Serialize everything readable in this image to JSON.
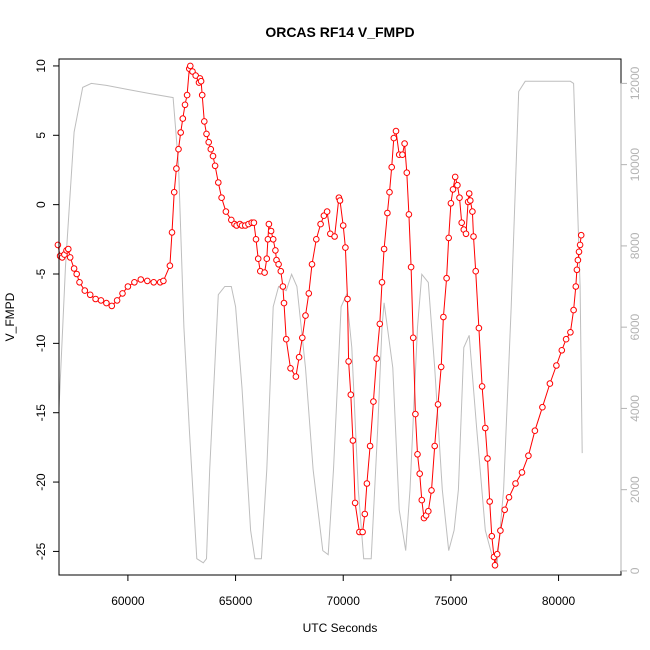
{
  "chart_data": {
    "type": "line",
    "title": "ORCAS RF14 V_FMPD",
    "xlabel": "UTC Seconds",
    "ylabel": "V_FMPD",
    "xlim": [
      56800,
      82900
    ],
    "ylim": [
      -26.7,
      10.5
    ],
    "y2lim": [
      -100,
      12600
    ],
    "grid": false,
    "legend": "none",
    "x_ticks": [
      60000,
      65000,
      70000,
      75000,
      80000
    ],
    "y_ticks": [
      10,
      5,
      0,
      -5,
      -10,
      -15,
      -20,
      -25
    ],
    "y2_ticks": [
      0,
      2000,
      4000,
      6000,
      8000,
      10000,
      12000
    ],
    "colors": {
      "series_main": "#ff0000",
      "series_secondary": "#bebebe",
      "axes": "#000000",
      "right_axis": "#b3b3b3"
    },
    "series": [
      {
        "axis": "left",
        "style": "red circles connected by line segments",
        "points": [
          [
            56750,
            -2.9
          ],
          [
            56850,
            -3.7
          ],
          [
            56950,
            -3.8
          ],
          [
            57050,
            -3.6
          ],
          [
            57150,
            -3.3
          ],
          [
            57230,
            -3.2
          ],
          [
            57320,
            -3.8
          ],
          [
            57500,
            -4.6
          ],
          [
            57620,
            -5.0
          ],
          [
            57750,
            -5.6
          ],
          [
            58000,
            -6.2
          ],
          [
            58250,
            -6.5
          ],
          [
            58500,
            -6.8
          ],
          [
            58750,
            -6.9
          ],
          [
            59000,
            -7.1
          ],
          [
            59250,
            -7.3
          ],
          [
            59500,
            -6.9
          ],
          [
            59750,
            -6.4
          ],
          [
            60000,
            -5.9
          ],
          [
            60300,
            -5.6
          ],
          [
            60600,
            -5.4
          ],
          [
            60900,
            -5.5
          ],
          [
            61200,
            -5.6
          ],
          [
            61500,
            -5.6
          ],
          [
            61650,
            -5.5
          ],
          [
            61950,
            -4.4
          ],
          [
            62050,
            -2.0
          ],
          [
            62150,
            0.9
          ],
          [
            62250,
            2.6
          ],
          [
            62350,
            4.0
          ],
          [
            62450,
            5.2
          ],
          [
            62550,
            6.2
          ],
          [
            62650,
            7.2
          ],
          [
            62750,
            7.9
          ],
          [
            62850,
            9.8
          ],
          [
            62900,
            10.0
          ],
          [
            63000,
            9.6
          ],
          [
            63150,
            9.3
          ],
          [
            63300,
            8.8
          ],
          [
            63350,
            9.1
          ],
          [
            63400,
            8.9
          ],
          [
            63450,
            7.9
          ],
          [
            63550,
            6.0
          ],
          [
            63650,
            5.1
          ],
          [
            63750,
            4.5
          ],
          [
            63850,
            4.0
          ],
          [
            63950,
            3.5
          ],
          [
            64050,
            2.8
          ],
          [
            64200,
            1.6
          ],
          [
            64350,
            0.5
          ],
          [
            64550,
            -0.5
          ],
          [
            64800,
            -1.1
          ],
          [
            64950,
            -1.4
          ],
          [
            65050,
            -1.5
          ],
          [
            65200,
            -1.4
          ],
          [
            65300,
            -1.5
          ],
          [
            65450,
            -1.5
          ],
          [
            65600,
            -1.4
          ],
          [
            65750,
            -1.3
          ],
          [
            65850,
            -1.3
          ],
          [
            65950,
            -2.5
          ],
          [
            66050,
            -3.9
          ],
          [
            66150,
            -4.8
          ],
          [
            66350,
            -4.9
          ],
          [
            66450,
            -3.9
          ],
          [
            66500,
            -2.5
          ],
          [
            66550,
            -1.4
          ],
          [
            66650,
            -1.9
          ],
          [
            66750,
            -2.5
          ],
          [
            66850,
            -3.3
          ],
          [
            66900,
            -4.0
          ],
          [
            67000,
            -4.3
          ],
          [
            67100,
            -4.8
          ],
          [
            67200,
            -5.9
          ],
          [
            67250,
            -7.1
          ],
          [
            67350,
            -9.7
          ],
          [
            67550,
            -11.8
          ],
          [
            67800,
            -12.4
          ],
          [
            67950,
            -11.0
          ],
          [
            68100,
            -9.6
          ],
          [
            68250,
            -8.0
          ],
          [
            68400,
            -6.4
          ],
          [
            68550,
            -4.3
          ],
          [
            68750,
            -2.5
          ],
          [
            68950,
            -1.4
          ],
          [
            69100,
            -0.8
          ],
          [
            69250,
            -0.5
          ],
          [
            69400,
            -2.1
          ],
          [
            69600,
            -2.3
          ],
          [
            69800,
            0.5
          ],
          [
            69850,
            0.3
          ],
          [
            70000,
            -1.5
          ],
          [
            70100,
            -3.1
          ],
          [
            70200,
            -6.8
          ],
          [
            70250,
            -11.3
          ],
          [
            70350,
            -13.7
          ],
          [
            70450,
            -17.0
          ],
          [
            70550,
            -21.5
          ],
          [
            70750,
            -23.6
          ],
          [
            70900,
            -23.6
          ],
          [
            71000,
            -22.3
          ],
          [
            71100,
            -20.1
          ],
          [
            71250,
            -17.4
          ],
          [
            71400,
            -14.2
          ],
          [
            71550,
            -11.1
          ],
          [
            71700,
            -8.6
          ],
          [
            71800,
            -5.6
          ],
          [
            71900,
            -3.2
          ],
          [
            72050,
            -0.6
          ],
          [
            72150,
            0.9
          ],
          [
            72250,
            2.7
          ],
          [
            72350,
            4.8
          ],
          [
            72450,
            5.3
          ],
          [
            72600,
            3.6
          ],
          [
            72750,
            3.6
          ],
          [
            72850,
            4.4
          ],
          [
            72950,
            2.3
          ],
          [
            73050,
            -0.7
          ],
          [
            73150,
            -4.5
          ],
          [
            73250,
            -9.6
          ],
          [
            73350,
            -15.1
          ],
          [
            73450,
            -18.0
          ],
          [
            73550,
            -19.4
          ],
          [
            73650,
            -21.3
          ],
          [
            73750,
            -22.6
          ],
          [
            73850,
            -22.4
          ],
          [
            73950,
            -22.1
          ],
          [
            74100,
            -20.6
          ],
          [
            74250,
            -17.4
          ],
          [
            74400,
            -14.4
          ],
          [
            74550,
            -11.7
          ],
          [
            74650,
            -8.1
          ],
          [
            74800,
            -5.3
          ],
          [
            74900,
            -2.4
          ],
          [
            75000,
            0.1
          ],
          [
            75100,
            1.1
          ],
          [
            75200,
            2.0
          ],
          [
            75300,
            1.4
          ],
          [
            75400,
            0.5
          ],
          [
            75500,
            -1.3
          ],
          [
            75600,
            -1.8
          ],
          [
            75700,
            -2.1
          ],
          [
            75800,
            0.2
          ],
          [
            75850,
            0.8
          ],
          [
            75900,
            0.3
          ],
          [
            76000,
            -0.5
          ],
          [
            76050,
            -2.3
          ],
          [
            76150,
            -4.8
          ],
          [
            76300,
            -8.9
          ],
          [
            76450,
            -13.1
          ],
          [
            76600,
            -16.1
          ],
          [
            76700,
            -18.3
          ],
          [
            76800,
            -21.4
          ],
          [
            76900,
            -23.9
          ],
          [
            77000,
            -25.4
          ],
          [
            77050,
            -26.0
          ],
          [
            77150,
            -25.2
          ],
          [
            77300,
            -23.5
          ],
          [
            77500,
            -22.0
          ],
          [
            77700,
            -21.1
          ],
          [
            78000,
            -20.1
          ],
          [
            78300,
            -19.3
          ],
          [
            78600,
            -18.1
          ],
          [
            78900,
            -16.3
          ],
          [
            79250,
            -14.6
          ],
          [
            79600,
            -12.9
          ],
          [
            79900,
            -11.6
          ],
          [
            80150,
            -10.5
          ],
          [
            80350,
            -9.7
          ],
          [
            80550,
            -9.2
          ],
          [
            80700,
            -7.6
          ],
          [
            80800,
            -5.9
          ],
          [
            80850,
            -4.7
          ],
          [
            80900,
            -4.0
          ],
          [
            80950,
            -3.4
          ],
          [
            81000,
            -2.9
          ],
          [
            81050,
            -2.2
          ]
        ]
      },
      {
        "axis": "right",
        "style": "grey line",
        "points": [
          [
            56800,
            4000
          ],
          [
            57100,
            7500
          ],
          [
            57500,
            10800
          ],
          [
            57900,
            11900
          ],
          [
            58300,
            12000
          ],
          [
            59000,
            11950
          ],
          [
            60000,
            11850
          ],
          [
            61000,
            11750
          ],
          [
            62100,
            11650
          ],
          [
            62350,
            10000
          ],
          [
            62600,
            6000
          ],
          [
            62850,
            3500
          ],
          [
            63200,
            300
          ],
          [
            63500,
            200
          ],
          [
            63650,
            300
          ],
          [
            63800,
            2500
          ],
          [
            64200,
            6800
          ],
          [
            64500,
            7000
          ],
          [
            64800,
            7000
          ],
          [
            65000,
            6500
          ],
          [
            65300,
            4500
          ],
          [
            65700,
            1000
          ],
          [
            65900,
            300
          ],
          [
            66200,
            300
          ],
          [
            66450,
            2500
          ],
          [
            66750,
            6500
          ],
          [
            67000,
            7000
          ],
          [
            67350,
            6900
          ],
          [
            67600,
            7300
          ],
          [
            67850,
            7000
          ],
          [
            68250,
            5000
          ],
          [
            68600,
            2500
          ],
          [
            69050,
            500
          ],
          [
            69300,
            400
          ],
          [
            69550,
            2500
          ],
          [
            69900,
            6500
          ],
          [
            70150,
            6800
          ],
          [
            70400,
            5500
          ],
          [
            70700,
            2000
          ],
          [
            70950,
            300
          ],
          [
            71300,
            300
          ],
          [
            71600,
            3500
          ],
          [
            71800,
            6000
          ],
          [
            71900,
            6600
          ],
          [
            72300,
            5000
          ],
          [
            72600,
            1500
          ],
          [
            72900,
            500
          ],
          [
            73100,
            2000
          ],
          [
            73450,
            6000
          ],
          [
            73650,
            7300
          ],
          [
            73950,
            7100
          ],
          [
            74250,
            5000
          ],
          [
            74600,
            2000
          ],
          [
            74900,
            500
          ],
          [
            75150,
            1000
          ],
          [
            75350,
            2000
          ],
          [
            75600,
            5500
          ],
          [
            75850,
            5800
          ],
          [
            76200,
            3500
          ],
          [
            76600,
            1000
          ],
          [
            76950,
            300
          ],
          [
            77150,
            200
          ],
          [
            77450,
            2000
          ],
          [
            77800,
            6500
          ],
          [
            78150,
            11800
          ],
          [
            78450,
            12050
          ],
          [
            79500,
            12050
          ],
          [
            80550,
            12050
          ],
          [
            80700,
            12000
          ],
          [
            81000,
            7000
          ],
          [
            81100,
            2900
          ]
        ]
      }
    ]
  }
}
